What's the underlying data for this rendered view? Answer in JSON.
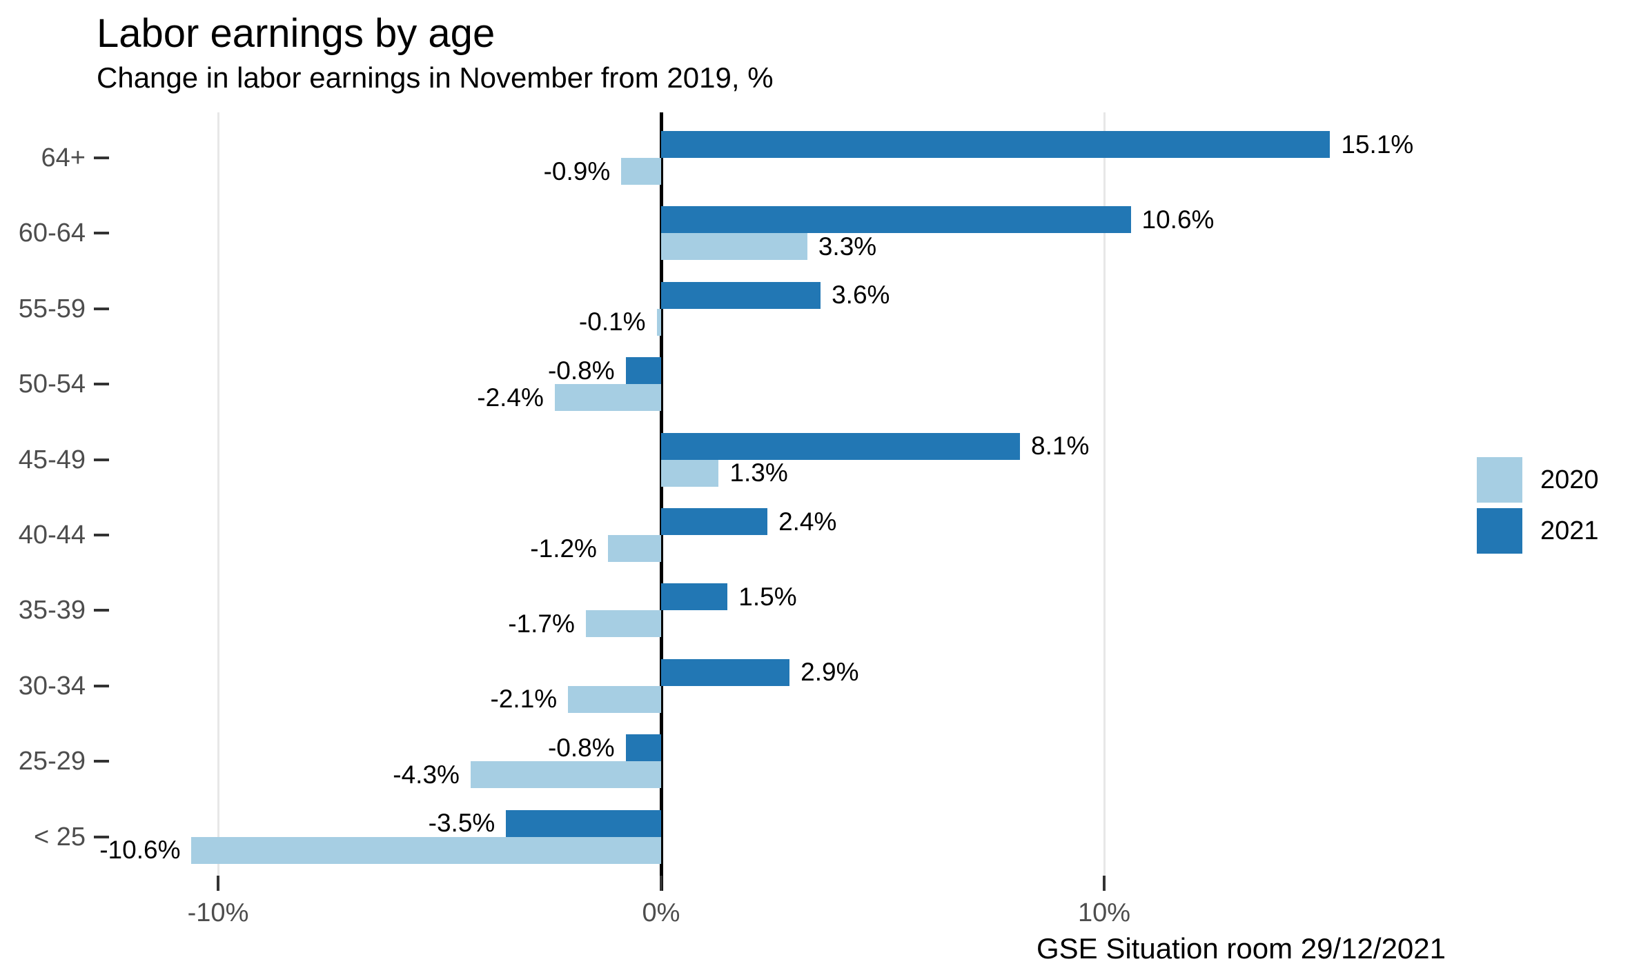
{
  "header": {
    "title": "Labor earnings by age",
    "subtitle": "Change in labor earnings in November from 2019, %"
  },
  "caption": "GSE Situation room 29/12/2021",
  "colors": {
    "series_2020": "#a6cee3",
    "series_2021": "#2277b4",
    "gridline": "#e7e7e7",
    "zero_axis": "#000000",
    "axis_text": "#4d4d4d",
    "tick": "#333333",
    "label_text": "#000000",
    "background": "#ffffff"
  },
  "chart_data": {
    "type": "bar",
    "orientation": "horizontal",
    "title": "Labor earnings by age",
    "subtitle": "Change in labor earnings in November from 2019, %",
    "caption": "GSE Situation room 29/12/2021",
    "xlabel": "",
    "ylabel": "",
    "unit": "%",
    "grid": "vertical-major-only",
    "xlim": [
      -12.5,
      18
    ],
    "categories": [
      "64+",
      "60-64",
      "55-59",
      "50-54",
      "45-49",
      "40-44",
      "35-39",
      "30-34",
      "25-29",
      "< 25"
    ],
    "series": [
      {
        "name": "2020",
        "color": "#a6cee3",
        "values": [
          -0.9,
          3.3,
          -0.1,
          -2.4,
          1.3,
          -1.2,
          -1.7,
          -2.1,
          -4.3,
          -10.6
        ],
        "labels": [
          "-0.9%",
          "3.3%",
          "-0.1%",
          "-2.4%",
          "1.3%",
          "-1.2%",
          "-1.7%",
          "-2.1%",
          "-4.3%",
          "-10.6%"
        ]
      },
      {
        "name": "2021",
        "color": "#2277b4",
        "values": [
          15.1,
          10.6,
          3.6,
          -0.8,
          8.1,
          2.4,
          1.5,
          2.9,
          -0.8,
          -3.5
        ],
        "labels": [
          "15.1%",
          "10.6%",
          "3.6%",
          "-0.8%",
          "8.1%",
          "2.4%",
          "1.5%",
          "2.9%",
          "-0.8%",
          "-3.5%"
        ]
      }
    ],
    "x_axis": {
      "ticks": [
        -10,
        0,
        10
      ],
      "tick_labels": [
        "-10%",
        "0%",
        "10%"
      ]
    },
    "legend": {
      "position": "right",
      "items": [
        "2020",
        "2021"
      ]
    }
  }
}
